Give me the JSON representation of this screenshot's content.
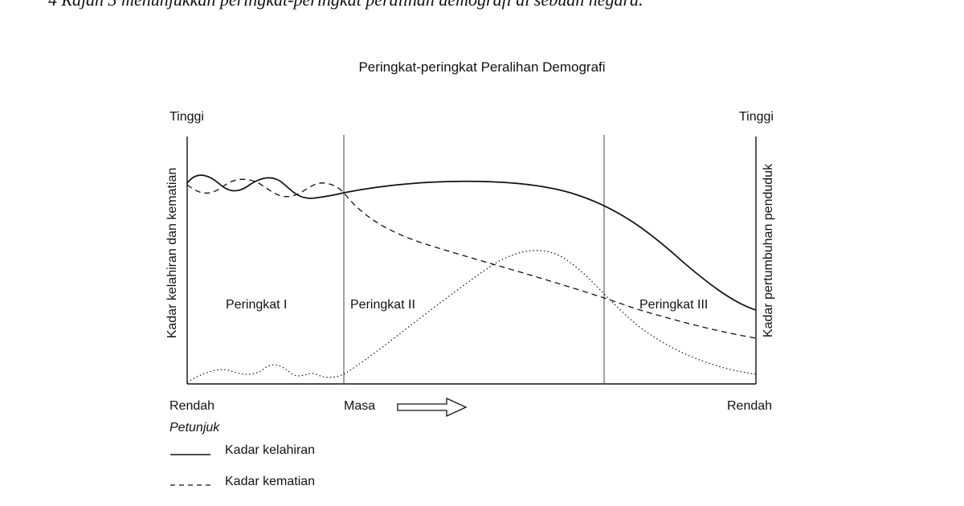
{
  "header": {
    "question_text": "4 Rajah 3 menunjukkan peringkat-peringkat peralihan demografi di sebuah negara."
  },
  "diagram": {
    "title": "Peringkat-peringkat Peralihan Demografi",
    "left_axis": {
      "top_label": "Tinggi",
      "bottom_label": "Rendah",
      "axis_title": "Kadar kelahiran dan kematian"
    },
    "right_axis": {
      "top_label": "Tinggi",
      "bottom_label": "Rendah",
      "axis_title": "Kadar pertumbuhan penduduk"
    },
    "x_axis": {
      "label": "Masa"
    },
    "stages": [
      "Peringkat I",
      "Peringkat II",
      "Peringkat III"
    ]
  },
  "legend": {
    "title": "Petunjuk",
    "items": [
      {
        "name": "Kadar kelahiran",
        "style": "solid"
      },
      {
        "name": "Kadar kematian",
        "style": "dashed"
      }
    ]
  },
  "colors": {
    "ink": "#111111",
    "guide": "#555555"
  }
}
